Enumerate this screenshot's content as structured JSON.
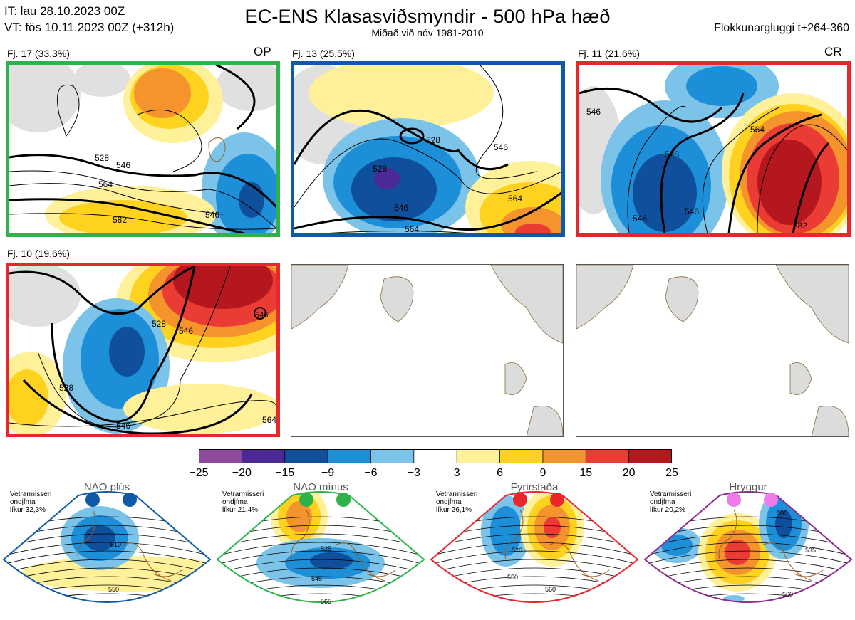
{
  "header": {
    "it": "IT: lau 28.10.2023 00Z",
    "vt": "VT: fös 10.11.2023 00Z  (+312h)",
    "title": "EC-ENS Klasasviðsmyndir - 500 hPa hæð",
    "subtitle": "Miðað við nóv 1981-2010",
    "window": "Flokkunargluggi t+264-360"
  },
  "clusters": [
    {
      "label": "Fj. 17 (33.3%)",
      "tag": "OP",
      "border": "#2db34a",
      "contours": [
        "528",
        "546",
        "564",
        "582",
        "546"
      ]
    },
    {
      "label": "Fj. 13 (25.5%)",
      "tag": "",
      "border": "#0f5aa8",
      "contours": [
        "528",
        "528",
        "546",
        "564",
        "564",
        "546"
      ]
    },
    {
      "label": "Fj. 11 (21.6%)",
      "tag": "CR",
      "border": "#e8262c",
      "contours": [
        "546",
        "528",
        "546",
        "564",
        "546",
        "582"
      ]
    },
    {
      "label": "Fj. 10 (19.6%)",
      "tag": "",
      "border": "#e8262c",
      "contours": [
        "528",
        "546",
        "528",
        "546",
        "564",
        "546"
      ]
    }
  ],
  "colorbar": {
    "colors": [
      "#8e4b9e",
      "#4b2a96",
      "#0f4f9c",
      "#1d8fd8",
      "#7cc3ea",
      "#ffffff",
      "#fff09a",
      "#ffd21f",
      "#f5942d",
      "#ea3c35",
      "#b5171e"
    ],
    "labels": [
      "−25",
      "−20",
      "−15",
      "−9",
      "−6",
      "−3",
      "3",
      "6",
      "9",
      "15",
      "20",
      "25"
    ]
  },
  "regimes": [
    {
      "name": "NAO plús",
      "color": "#0f5aa8",
      "dot": "#0f5aa8",
      "note": [
        "Vetrarmisseri",
        "ondjfma",
        "líkur 32,3%"
      ],
      "contours": [
        "510",
        "550"
      ]
    },
    {
      "name": "NAO mínus",
      "color": "#2db34a",
      "dot": "#2db34a",
      "note": [
        "Vetrarmisseri",
        "ondjfma",
        "líkur 21,4%"
      ],
      "contours": [
        "525",
        "545",
        "565"
      ]
    },
    {
      "name": "Fyrirstaða",
      "color": "#e8262c",
      "dot": "#e8262c",
      "note": [
        "Vetrarmisseri",
        "ondjfma",
        "líkur 26,1%"
      ],
      "contours": [
        "520",
        "550",
        "560"
      ]
    },
    {
      "name": "Hryggur",
      "color": "#8e2a8e",
      "dot": "#ef7be8",
      "note": [
        "Vetrarmisseri",
        "ondjfma",
        "líkur 20,2%"
      ],
      "contours": [
        "505",
        "535",
        "560"
      ]
    }
  ]
}
